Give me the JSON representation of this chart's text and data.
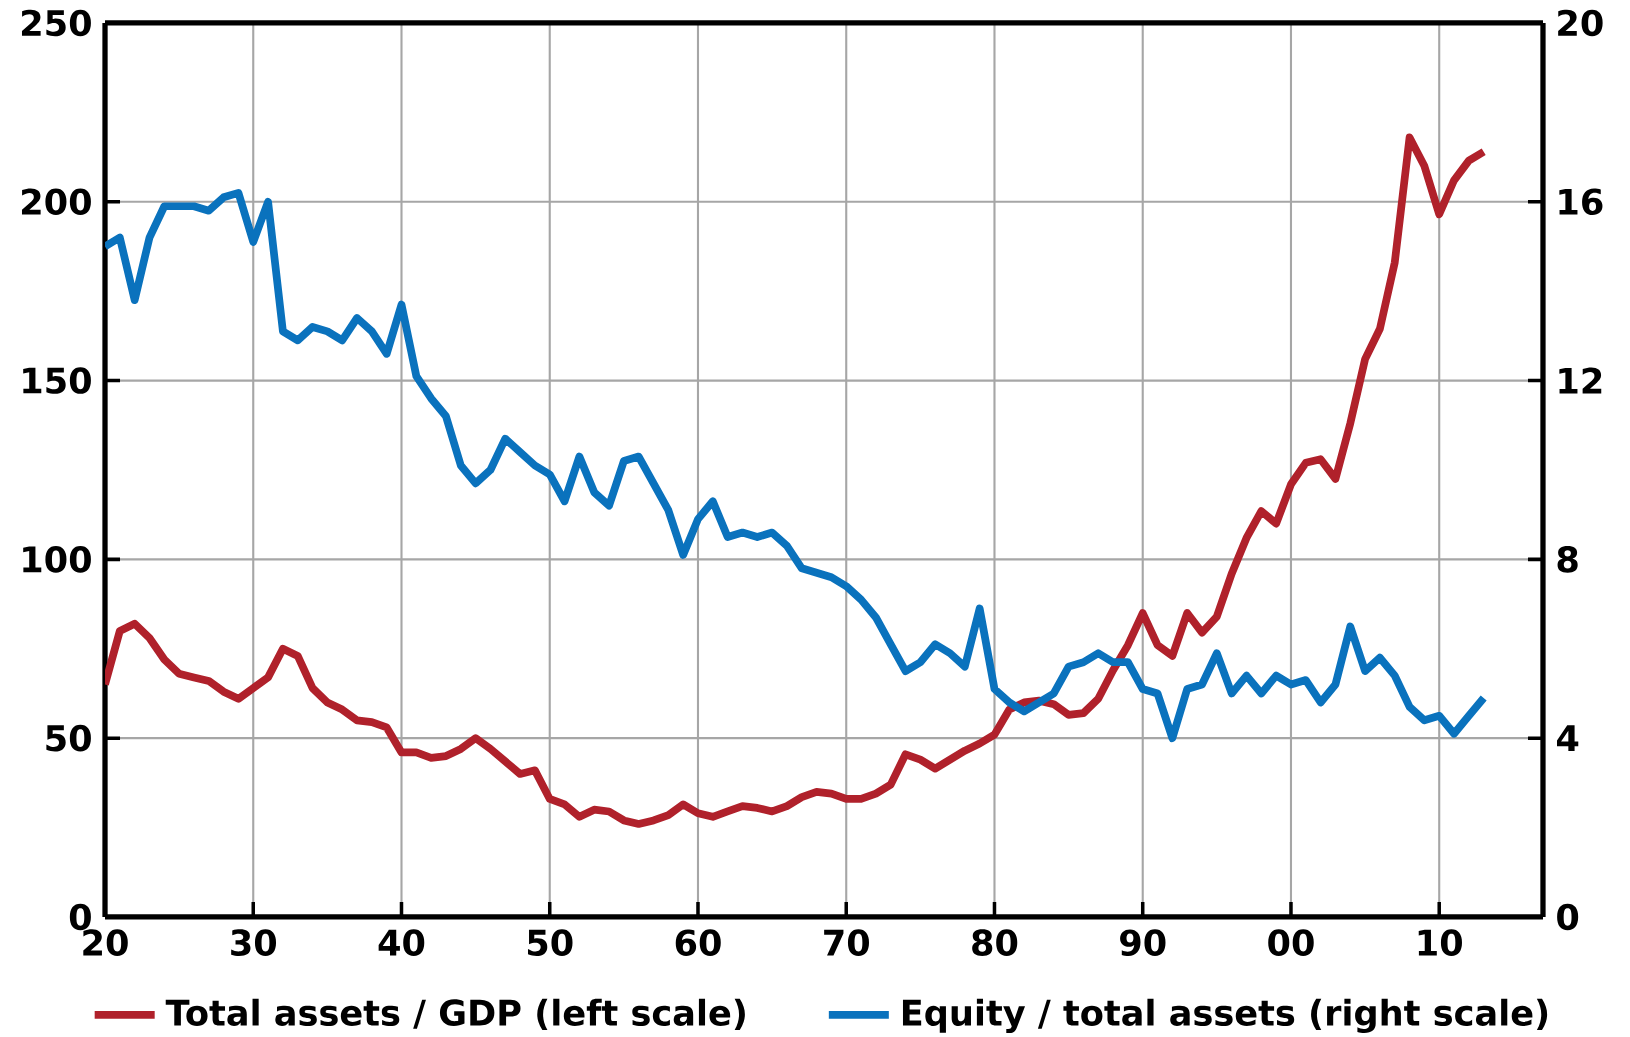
{
  "chart_data": {
    "type": "line",
    "x": [
      1920,
      1921,
      1922,
      1923,
      1924,
      1925,
      1926,
      1927,
      1928,
      1929,
      1930,
      1931,
      1932,
      1933,
      1934,
      1935,
      1936,
      1937,
      1938,
      1939,
      1940,
      1941,
      1942,
      1943,
      1944,
      1945,
      1946,
      1947,
      1948,
      1949,
      1950,
      1951,
      1952,
      1953,
      1954,
      1955,
      1956,
      1957,
      1958,
      1959,
      1960,
      1961,
      1962,
      1963,
      1964,
      1965,
      1966,
      1967,
      1968,
      1969,
      1970,
      1971,
      1972,
      1973,
      1974,
      1975,
      1976,
      1977,
      1978,
      1979,
      1980,
      1981,
      1982,
      1983,
      1984,
      1985,
      1986,
      1987,
      1988,
      1989,
      1990,
      1991,
      1992,
      1993,
      1994,
      1995,
      1996,
      1997,
      1998,
      1999,
      2000,
      2001,
      2002,
      2003,
      2004,
      2005,
      2006,
      2007,
      2008,
      2009,
      2010,
      2011,
      2012,
      2013
    ],
    "series": [
      {
        "name": "Total assets / GDP (left scale)",
        "color": "#b0212b",
        "values": [
          65,
          80,
          82,
          78,
          72,
          68,
          67,
          66,
          63,
          61,
          64,
          67,
          75,
          73,
          64,
          60,
          58,
          55,
          54.5,
          53,
          46,
          46,
          44.5,
          45,
          47,
          50,
          47,
          43.5,
          40,
          41,
          33,
          31.5,
          28,
          30,
          29.5,
          27,
          26,
          27,
          28.5,
          31.5,
          29,
          28,
          29.5,
          31,
          30.5,
          29.5,
          31,
          33.5,
          35,
          34.5,
          33,
          33,
          34.5,
          37,
          45.5,
          44,
          41.5,
          44,
          46.5,
          48.5,
          51,
          58,
          60,
          60.5,
          59.5,
          56.5,
          57,
          61,
          69,
          76,
          85,
          76,
          73,
          85,
          79.5,
          84,
          96,
          106,
          113.5,
          110,
          121,
          127,
          128,
          122.5,
          138,
          156,
          164.5,
          183,
          218,
          210,
          196.5,
          206,
          211.5,
          214
        ]
      },
      {
        "name": "Equity / total assets (right scale)",
        "color": "#0a72bd",
        "axis": "y2",
        "values": [
          15.0,
          15.2,
          13.8,
          15.2,
          15.9,
          15.9,
          15.9,
          15.8,
          16.1,
          16.2,
          15.1,
          16.0,
          13.1,
          12.9,
          13.2,
          13.1,
          12.9,
          13.4,
          13.1,
          12.6,
          13.7,
          12.1,
          11.6,
          11.2,
          10.1,
          9.7,
          10.0,
          10.7,
          10.4,
          10.1,
          9.9,
          9.3,
          10.3,
          9.5,
          9.2,
          10.2,
          10.3,
          9.7,
          9.1,
          8.1,
          8.9,
          9.3,
          8.5,
          8.6,
          8.5,
          8.6,
          8.3,
          7.8,
          7.7,
          7.6,
          7.4,
          7.1,
          6.7,
          6.1,
          5.5,
          5.7,
          6.1,
          5.9,
          5.6,
          6.9,
          5.1,
          4.8,
          4.6,
          4.8,
          5.0,
          5.6,
          5.7,
          5.9,
          5.7,
          5.7,
          5.1,
          5.0,
          4.0,
          5.1,
          5.2,
          5.9,
          5.0,
          5.4,
          5.0,
          5.4,
          5.2,
          5.3,
          4.8,
          5.2,
          6.5,
          5.5,
          5.8,
          5.4,
          4.7,
          4.4,
          4.5,
          4.1,
          4.5,
          4.9
        ]
      }
    ],
    "xlim": [
      1920,
      2017
    ],
    "xticks": [
      {
        "value": 1920,
        "label": "20"
      },
      {
        "value": 1930,
        "label": "30"
      },
      {
        "value": 1940,
        "label": "40"
      },
      {
        "value": 1950,
        "label": "50"
      },
      {
        "value": 1960,
        "label": "60"
      },
      {
        "value": 1970,
        "label": "70"
      },
      {
        "value": 1980,
        "label": "80"
      },
      {
        "value": 1990,
        "label": "90"
      },
      {
        "value": 2000,
        "label": "00"
      },
      {
        "value": 2010,
        "label": "10"
      }
    ],
    "ylim": [
      0,
      250
    ],
    "yticks": [
      0,
      50,
      100,
      150,
      200,
      250
    ],
    "y2lim": [
      0,
      20
    ],
    "y2ticks": [
      0,
      4,
      8,
      12,
      16,
      20
    ],
    "grid": true,
    "legend": "bottom"
  }
}
